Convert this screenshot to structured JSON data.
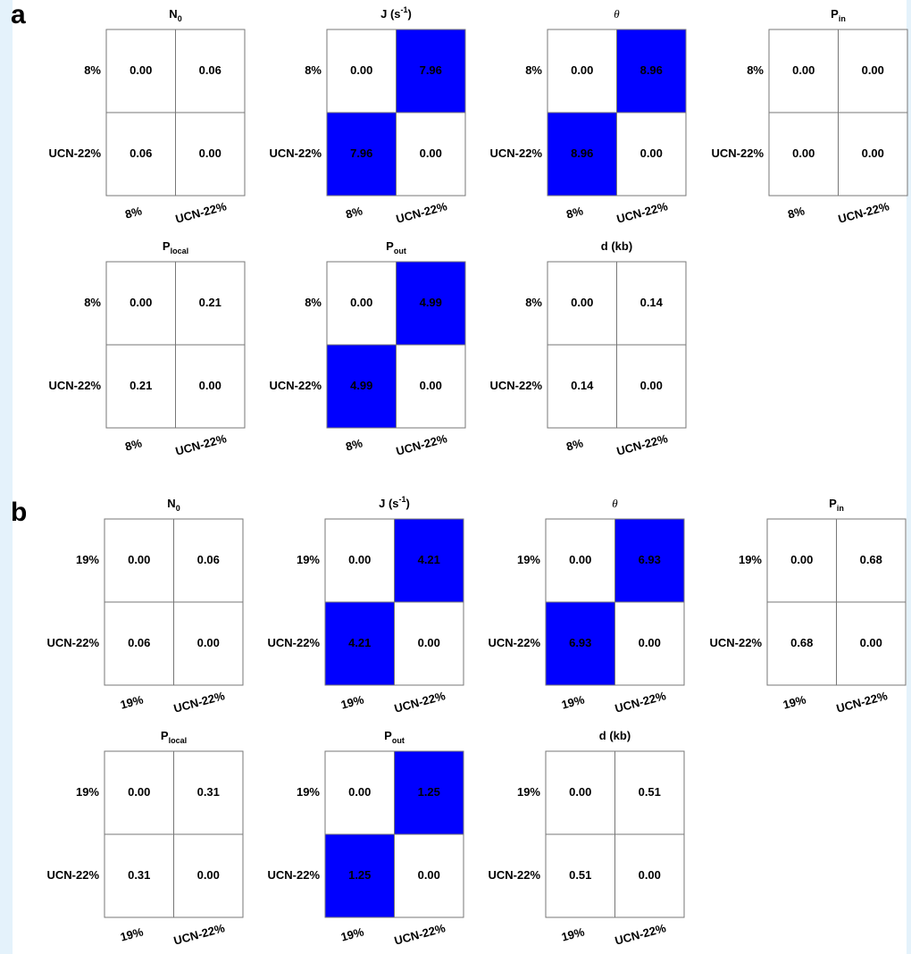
{
  "panel_labels": [
    "a",
    "b"
  ],
  "chart_data": [
    {
      "type": "heatmap",
      "title": [
        {
          "text": "N"
        },
        {
          "text": "0",
          "shift": "sub"
        }
      ],
      "rows": [
        "8%",
        "UCN-22%"
      ],
      "columns": [
        "8%",
        "UCN-22%"
      ],
      "values": [
        [
          0,
          0.06
        ],
        [
          0.06,
          0
        ]
      ],
      "value_labels": [
        [
          "0.00",
          "0.06"
        ],
        [
          "0.06",
          "0.00"
        ]
      ],
      "cell_colors": [
        [
          "#ffffff",
          "#ffffff"
        ],
        [
          "#ffffff",
          "#ffffff"
        ]
      ]
    },
    {
      "type": "heatmap",
      "title": [
        {
          "text": "J (s"
        },
        {
          "text": "-1",
          "shift": "super"
        },
        {
          "text": ")"
        }
      ],
      "rows": [
        "8%",
        "UCN-22%"
      ],
      "columns": [
        "8%",
        "UCN-22%"
      ],
      "values": [
        [
          0,
          7.96
        ],
        [
          7.96,
          0
        ]
      ],
      "value_labels": [
        [
          "0.00",
          "7.96"
        ],
        [
          "7.96",
          "0.00"
        ]
      ],
      "cell_colors": [
        [
          "#ffffff",
          "#0000ff"
        ],
        [
          "#0000ff",
          "#ffffff"
        ]
      ]
    },
    {
      "type": "heatmap",
      "title": [
        {
          "text": "θ",
          "style": "italic"
        }
      ],
      "rows": [
        "8%",
        "UCN-22%"
      ],
      "columns": [
        "8%",
        "UCN-22%"
      ],
      "values": [
        [
          0,
          8.96
        ],
        [
          8.96,
          0
        ]
      ],
      "value_labels": [
        [
          "0.00",
          "8.96"
        ],
        [
          "8.96",
          "0.00"
        ]
      ],
      "cell_colors": [
        [
          "#ffffff",
          "#0000ff"
        ],
        [
          "#0000ff",
          "#ffffff"
        ]
      ]
    },
    {
      "type": "heatmap",
      "title": [
        {
          "text": "P"
        },
        {
          "text": "in",
          "shift": "sub"
        }
      ],
      "rows": [
        "8%",
        "UCN-22%"
      ],
      "columns": [
        "8%",
        "UCN-22%"
      ],
      "values": [
        [
          0,
          0
        ],
        [
          0,
          0
        ]
      ],
      "value_labels": [
        [
          "0.00",
          "0.00"
        ],
        [
          "0.00",
          "0.00"
        ]
      ],
      "cell_colors": [
        [
          "#ffffff",
          "#ffffff"
        ],
        [
          "#ffffff",
          "#ffffff"
        ]
      ]
    },
    {
      "type": "heatmap",
      "title": [
        {
          "text": "P"
        },
        {
          "text": "local",
          "shift": "sub"
        }
      ],
      "rows": [
        "8%",
        "UCN-22%"
      ],
      "columns": [
        "8%",
        "UCN-22%"
      ],
      "values": [
        [
          0,
          0.21
        ],
        [
          0.21,
          0
        ]
      ],
      "value_labels": [
        [
          "0.00",
          "0.21"
        ],
        [
          "0.21",
          "0.00"
        ]
      ],
      "cell_colors": [
        [
          "#ffffff",
          "#ffffff"
        ],
        [
          "#ffffff",
          "#ffffff"
        ]
      ]
    },
    {
      "type": "heatmap",
      "title": [
        {
          "text": "P"
        },
        {
          "text": "out",
          "shift": "sub"
        }
      ],
      "rows": [
        "8%",
        "UCN-22%"
      ],
      "columns": [
        "8%",
        "UCN-22%"
      ],
      "values": [
        [
          0,
          4.99
        ],
        [
          4.99,
          0
        ]
      ],
      "value_labels": [
        [
          "0.00",
          "4.99"
        ],
        [
          "4.99",
          "0.00"
        ]
      ],
      "cell_colors": [
        [
          "#ffffff",
          "#0000ff"
        ],
        [
          "#0000ff",
          "#ffffff"
        ]
      ]
    },
    {
      "type": "heatmap",
      "title": [
        {
          "text": "d (kb)"
        }
      ],
      "rows": [
        "8%",
        "UCN-22%"
      ],
      "columns": [
        "8%",
        "UCN-22%"
      ],
      "values": [
        [
          0,
          0.14
        ],
        [
          0.14,
          0
        ]
      ],
      "value_labels": [
        [
          "0.00",
          "0.14"
        ],
        [
          "0.14",
          "0.00"
        ]
      ],
      "cell_colors": [
        [
          "#ffffff",
          "#ffffff"
        ],
        [
          "#ffffff",
          "#ffffff"
        ]
      ]
    },
    {
      "type": "heatmap",
      "title": [
        {
          "text": "N"
        },
        {
          "text": "0",
          "shift": "sub"
        }
      ],
      "rows": [
        "19%",
        "UCN-22%"
      ],
      "columns": [
        "19%",
        "UCN-22%"
      ],
      "values": [
        [
          0,
          0.06
        ],
        [
          0.06,
          0
        ]
      ],
      "value_labels": [
        [
          "0.00",
          "0.06"
        ],
        [
          "0.06",
          "0.00"
        ]
      ],
      "cell_colors": [
        [
          "#ffffff",
          "#ffffff"
        ],
        [
          "#ffffff",
          "#ffffff"
        ]
      ]
    },
    {
      "type": "heatmap",
      "title": [
        {
          "text": "J (s"
        },
        {
          "text": "-1",
          "shift": "super"
        },
        {
          "text": ")"
        }
      ],
      "rows": [
        "19%",
        "UCN-22%"
      ],
      "columns": [
        "19%",
        "UCN-22%"
      ],
      "values": [
        [
          0,
          4.21
        ],
        [
          4.21,
          0
        ]
      ],
      "value_labels": [
        [
          "0.00",
          "4.21"
        ],
        [
          "4.21",
          "0.00"
        ]
      ],
      "cell_colors": [
        [
          "#ffffff",
          "#0000ff"
        ],
        [
          "#0000ff",
          "#ffffff"
        ]
      ]
    },
    {
      "type": "heatmap",
      "title": [
        {
          "text": "θ",
          "style": "italic"
        }
      ],
      "rows": [
        "19%",
        "UCN-22%"
      ],
      "columns": [
        "19%",
        "UCN-22%"
      ],
      "values": [
        [
          0,
          6.93
        ],
        [
          6.93,
          0
        ]
      ],
      "value_labels": [
        [
          "0.00",
          "6.93"
        ],
        [
          "6.93",
          "0.00"
        ]
      ],
      "cell_colors": [
        [
          "#ffffff",
          "#0000ff"
        ],
        [
          "#0000ff",
          "#ffffff"
        ]
      ]
    },
    {
      "type": "heatmap",
      "title": [
        {
          "text": "P"
        },
        {
          "text": "in",
          "shift": "sub"
        }
      ],
      "rows": [
        "19%",
        "UCN-22%"
      ],
      "columns": [
        "19%",
        "UCN-22%"
      ],
      "values": [
        [
          0,
          0.68
        ],
        [
          0.68,
          0
        ]
      ],
      "value_labels": [
        [
          "0.00",
          "0.68"
        ],
        [
          "0.68",
          "0.00"
        ]
      ],
      "cell_colors": [
        [
          "#ffffff",
          "#ffffff"
        ],
        [
          "#ffffff",
          "#ffffff"
        ]
      ]
    },
    {
      "type": "heatmap",
      "title": [
        {
          "text": "P"
        },
        {
          "text": "local",
          "shift": "sub"
        }
      ],
      "rows": [
        "19%",
        "UCN-22%"
      ],
      "columns": [
        "19%",
        "UCN-22%"
      ],
      "values": [
        [
          0,
          0.31
        ],
        [
          0.31,
          0
        ]
      ],
      "value_labels": [
        [
          "0.00",
          "0.31"
        ],
        [
          "0.31",
          "0.00"
        ]
      ],
      "cell_colors": [
        [
          "#ffffff",
          "#ffffff"
        ],
        [
          "#ffffff",
          "#ffffff"
        ]
      ]
    },
    {
      "type": "heatmap",
      "title": [
        {
          "text": "P"
        },
        {
          "text": "out",
          "shift": "sub"
        }
      ],
      "rows": [
        "19%",
        "UCN-22%"
      ],
      "columns": [
        "19%",
        "UCN-22%"
      ],
      "values": [
        [
          0,
          1.25
        ],
        [
          1.25,
          0
        ]
      ],
      "value_labels": [
        [
          "0.00",
          "1.25"
        ],
        [
          "1.25",
          "0.00"
        ]
      ],
      "cell_colors": [
        [
          "#ffffff",
          "#0000ff"
        ],
        [
          "#0000ff",
          "#ffffff"
        ]
      ]
    },
    {
      "type": "heatmap",
      "title": [
        {
          "text": "d (kb)"
        }
      ],
      "rows": [
        "19%",
        "UCN-22%"
      ],
      "columns": [
        "19%",
        "UCN-22%"
      ],
      "values": [
        [
          0,
          0.51
        ],
        [
          0.51,
          0
        ]
      ],
      "value_labels": [
        [
          "0.00",
          "0.51"
        ],
        [
          "0.51",
          "0.00"
        ]
      ],
      "cell_colors": [
        [
          "#ffffff",
          "#ffffff"
        ],
        [
          "#ffffff",
          "#ffffff"
        ]
      ]
    }
  ]
}
